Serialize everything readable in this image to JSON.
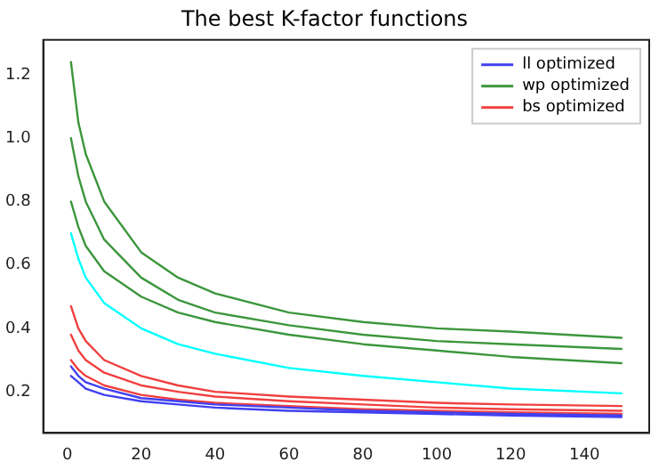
{
  "chart_data": {
    "type": "line",
    "title": "The best K-factor functions",
    "x": [
      1,
      3,
      5,
      10,
      20,
      30,
      40,
      60,
      80,
      100,
      120,
      150
    ],
    "series": [
      {
        "name": "ll optimized",
        "color": "#4040f0",
        "values": [
          0.28,
          0.25,
          0.23,
          0.21,
          0.18,
          0.17,
          0.16,
          0.15,
          0.14,
          0.135,
          0.13,
          0.125
        ]
      },
      {
        "color": "#4040f0",
        "values": [
          0.25,
          0.23,
          0.21,
          0.19,
          0.17,
          0.16,
          0.15,
          0.14,
          0.135,
          0.13,
          0.125,
          0.12
        ]
      },
      {
        "name": "wp optimized",
        "color": "#3c963c",
        "values": [
          1.24,
          1.05,
          0.95,
          0.8,
          0.64,
          0.56,
          0.51,
          0.45,
          0.42,
          0.4,
          0.39,
          0.37
        ]
      },
      {
        "color": "#3c963c",
        "values": [
          1.0,
          0.88,
          0.8,
          0.68,
          0.56,
          0.49,
          0.45,
          0.41,
          0.38,
          0.36,
          0.35,
          0.335
        ]
      },
      {
        "color": "#3c963c",
        "values": [
          0.8,
          0.72,
          0.66,
          0.58,
          0.5,
          0.45,
          0.42,
          0.38,
          0.35,
          0.33,
          0.31,
          0.29
        ]
      },
      {
        "name": "bs optimized",
        "color": "#f04040",
        "values": [
          0.47,
          0.4,
          0.36,
          0.3,
          0.25,
          0.22,
          0.2,
          0.185,
          0.175,
          0.165,
          0.16,
          0.155
        ]
      },
      {
        "color": "#f04040",
        "values": [
          0.38,
          0.33,
          0.3,
          0.26,
          0.22,
          0.2,
          0.185,
          0.17,
          0.16,
          0.15,
          0.145,
          0.14
        ]
      },
      {
        "color": "#f04040",
        "values": [
          0.3,
          0.27,
          0.25,
          0.22,
          0.19,
          0.175,
          0.165,
          0.155,
          0.145,
          0.14,
          0.135,
          0.13
        ]
      },
      {
        "color": "#00ffff",
        "values": [
          0.7,
          0.62,
          0.56,
          0.48,
          0.4,
          0.35,
          0.32,
          0.275,
          0.25,
          0.23,
          0.21,
          0.195
        ]
      }
    ],
    "xlim": [
      -6.5,
      157.5
    ],
    "xticks": [
      0,
      20,
      40,
      60,
      80,
      100,
      120,
      140
    ],
    "ylim": [
      0.07,
      1.31
    ],
    "yticks": [
      0.2,
      0.4,
      0.6,
      0.8,
      {
        "value": 1.0,
        "label": "1.0"
      },
      1.2
    ],
    "grid": false,
    "legend": "top right",
    "marker": "none",
    "line_style": "solid"
  }
}
